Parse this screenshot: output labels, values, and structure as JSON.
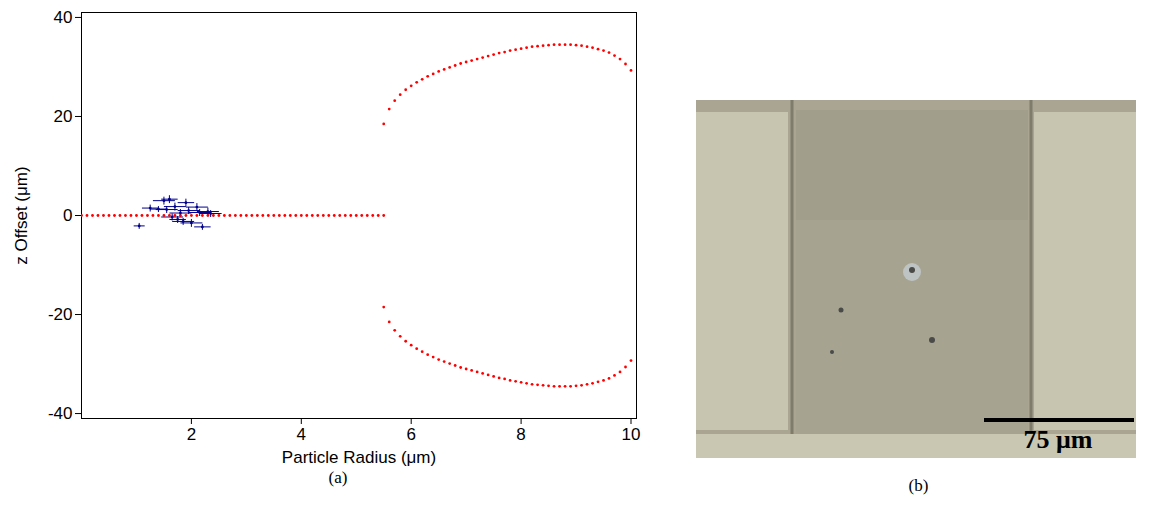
{
  "chart_data": {
    "type": "scatter",
    "caption": "(a)",
    "x_label": "Particle Radius (μm)",
    "y_label": "z Offset (μm)",
    "xlim": [
      0,
      10.1
    ],
    "ylim": [
      -41,
      41
    ],
    "xticks": [
      2,
      4,
      6,
      8,
      10
    ],
    "yticks": [
      -40,
      -20,
      0,
      20,
      40
    ],
    "grid": false,
    "tick_labels": true,
    "series": [
      {
        "color": "#ff0000",
        "marker": "dot",
        "x": [
          0,
          0.1,
          0.2,
          0.3,
          0.4,
          0.5,
          0.6,
          0.7,
          0.8,
          0.9,
          1.0,
          1.1,
          1.2,
          1.3,
          1.4,
          1.5,
          1.6,
          1.7,
          1.8,
          1.9,
          2.0,
          2.1,
          2.2,
          2.3,
          2.4,
          2.5,
          2.6,
          2.7,
          2.8,
          2.9,
          3.0,
          3.1,
          3.2,
          3.3,
          3.4,
          3.5,
          3.6,
          3.7,
          3.8,
          3.9,
          4.0,
          4.1,
          4.2,
          4.3,
          4.4,
          4.5,
          4.6,
          4.7,
          4.8,
          4.9,
          5.0,
          5.1,
          5.2,
          5.3,
          5.4,
          5.5
        ],
        "values": [
          0,
          0,
          0,
          0,
          0,
          0,
          0,
          0,
          0,
          0,
          0,
          0,
          0,
          0,
          0,
          0,
          0,
          0,
          0,
          0,
          0,
          0,
          0,
          0,
          0,
          0,
          0,
          0,
          0,
          0,
          0,
          0,
          0,
          0,
          0,
          0,
          0,
          0,
          0,
          0,
          0,
          0,
          0,
          0,
          0,
          0,
          0,
          0,
          0,
          0,
          0,
          0,
          0,
          0,
          0,
          0
        ]
      },
      {
        "color": "#ff0000",
        "marker": "dot",
        "x": [
          5.5,
          5.6,
          5.7,
          5.8,
          5.9,
          6.0,
          6.1,
          6.2,
          6.3,
          6.4,
          6.5,
          6.6,
          6.7,
          6.8,
          6.9,
          7.0,
          7.1,
          7.2,
          7.3,
          7.4,
          7.5,
          7.6,
          7.7,
          7.8,
          7.9,
          8.0,
          8.1,
          8.2,
          8.3,
          8.4,
          8.5,
          8.6,
          8.7,
          8.8,
          8.9,
          9.0,
          9.1,
          9.2,
          9.3,
          9.4,
          9.5,
          9.6,
          9.7,
          9.8,
          9.9,
          10.0
        ],
        "values": [
          18.5,
          21.5,
          23.2,
          24.4,
          25.4,
          26.2,
          26.9,
          27.5,
          28.1,
          28.6,
          29.1,
          29.5,
          29.9,
          30.3,
          30.7,
          31.0,
          31.3,
          31.6,
          31.9,
          32.2,
          32.5,
          32.8,
          33.0,
          33.3,
          33.5,
          33.7,
          33.9,
          34.1,
          34.2,
          34.3,
          34.4,
          34.5,
          34.5,
          34.5,
          34.5,
          34.4,
          34.3,
          34.1,
          33.9,
          33.6,
          33.3,
          32.9,
          32.3,
          31.6,
          30.6,
          29.3
        ]
      },
      {
        "color": "#ff0000",
        "marker": "dot",
        "x": [
          5.5,
          5.6,
          5.7,
          5.8,
          5.9,
          6.0,
          6.1,
          6.2,
          6.3,
          6.4,
          6.5,
          6.6,
          6.7,
          6.8,
          6.9,
          7.0,
          7.1,
          7.2,
          7.3,
          7.4,
          7.5,
          7.6,
          7.7,
          7.8,
          7.9,
          8.0,
          8.1,
          8.2,
          8.3,
          8.4,
          8.5,
          8.6,
          8.7,
          8.8,
          8.9,
          9.0,
          9.1,
          9.2,
          9.3,
          9.4,
          9.5,
          9.6,
          9.7,
          9.8,
          9.9,
          10.0
        ],
        "values": [
          -18.5,
          -21.5,
          -23.2,
          -24.4,
          -25.4,
          -26.2,
          -26.9,
          -27.5,
          -28.1,
          -28.6,
          -29.1,
          -29.5,
          -29.9,
          -30.3,
          -30.7,
          -31.0,
          -31.3,
          -31.6,
          -31.9,
          -32.2,
          -32.5,
          -32.8,
          -33.0,
          -33.3,
          -33.5,
          -33.7,
          -33.9,
          -34.1,
          -34.2,
          -34.3,
          -34.4,
          -34.5,
          -34.5,
          -34.5,
          -34.5,
          -34.4,
          -34.3,
          -34.1,
          -33.9,
          -33.6,
          -33.3,
          -32.9,
          -32.3,
          -31.6,
          -30.6,
          -29.3
        ]
      },
      {
        "color": "#00008b",
        "marker": "dot",
        "x": [
          1.05,
          1.25,
          1.4,
          1.5,
          1.55,
          1.6,
          1.65,
          1.7,
          1.75,
          1.8,
          1.85,
          1.9,
          1.95,
          2.0,
          2.1,
          2.15,
          2.2,
          2.3,
          2.35
        ],
        "values": [
          -2.1,
          1.5,
          1.3,
          3.0,
          1.2,
          3.3,
          -0.3,
          1.8,
          -0.8,
          0.5,
          -1.2,
          2.6,
          1.0,
          -1.5,
          1.7,
          0.6,
          -2.3,
          0.8,
          0.4
        ],
        "x_error": [
          0.1,
          0.15,
          0.15,
          0.2,
          0.2,
          0.15,
          0.2,
          0.2,
          0.15,
          0.2,
          0.2,
          0.15,
          0.2,
          0.2,
          0.2,
          0.2,
          0.15,
          0.2,
          0.2
        ],
        "y_error": [
          0.6,
          0.7,
          0.6,
          0.8,
          0.7,
          0.8,
          0.7,
          0.8,
          0.7,
          0.8,
          0.7,
          0.8,
          0.7,
          0.8,
          0.8,
          0.7,
          0.6,
          0.8,
          0.7
        ]
      }
    ]
  },
  "image_panel": {
    "caption": "(b)",
    "scale_bar_label": "75 μm"
  }
}
